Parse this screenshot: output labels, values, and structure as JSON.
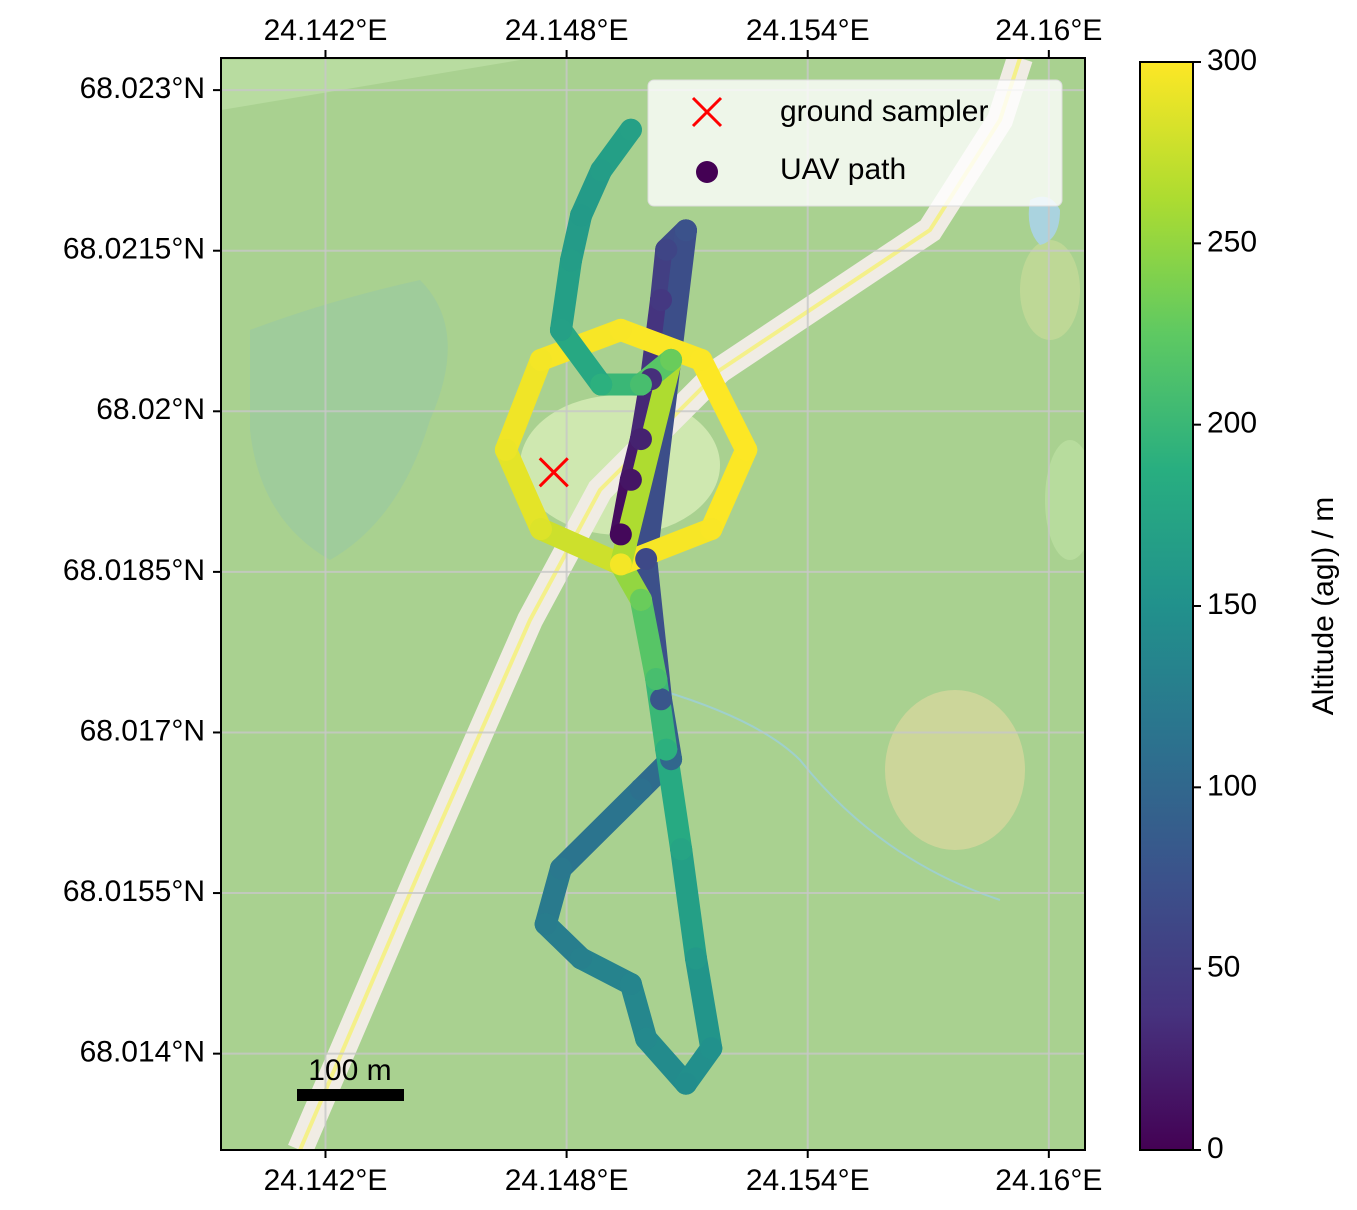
{
  "chart_data": {
    "type": "scatter",
    "xlim": [
      24.1394,
      24.1609
    ],
    "ylim": [
      68.0131,
      68.0233
    ],
    "xticks": [
      {
        "value": 24.142,
        "label": "24.142°E"
      },
      {
        "value": 24.148,
        "label": "24.148°E"
      },
      {
        "value": 24.154,
        "label": "24.154°E"
      },
      {
        "value": 24.16,
        "label": "24.16°E"
      }
    ],
    "yticks": [
      {
        "value": 68.014,
        "label": "68.014°N"
      },
      {
        "value": 68.0155,
        "label": "68.0155°N"
      },
      {
        "value": 68.017,
        "label": "68.017°N"
      },
      {
        "value": 68.0185,
        "label": "68.0185°N"
      },
      {
        "value": 68.02,
        "label": "68.02°N"
      },
      {
        "value": 68.0215,
        "label": "68.0215°N"
      },
      {
        "value": 68.023,
        "label": "68.023°N"
      }
    ],
    "grid": true,
    "legend": "upper right",
    "scale_bar": "100 m",
    "colorbar": {
      "label": "Altitude (agl) / m",
      "clim": [
        0,
        300
      ],
      "ticks": [
        0,
        50,
        100,
        150,
        200,
        250,
        300
      ],
      "colormap": "viridis"
    },
    "series": [
      {
        "name": "ground sampler",
        "color": "#ff0000",
        "marker": "x",
        "x": [
          24.14768
        ],
        "y": [
          68.01943
        ]
      },
      {
        "name": "UAV path",
        "color": "#440154",
        "marker": "o",
        "x": [
          24.14935,
          24.1496,
          24.14985,
          24.1501,
          24.15035,
          24.15048,
          24.15097,
          24.14998,
          24.15035,
          24.1506,
          24.14985,
          24.14786,
          24.14748,
          24.14836,
          24.1496,
          24.14998,
          24.15097,
          24.1516,
          24.15122,
          24.15085,
          24.15048,
          24.15023,
          24.14985,
          24.14935,
          24.14736,
          24.14649,
          24.14736,
          24.14935,
          24.15135,
          24.15247,
          24.1516,
          24.14935,
          24.1506,
          24.14985,
          24.14886,
          24.14786,
          24.14811,
          24.14836,
          24.14886,
          24.1496
        ],
        "y": [
          68.01885,
          68.01936,
          68.01974,
          68.0203,
          68.02104,
          68.02151,
          68.02169,
          68.01862,
          68.01731,
          68.01675,
          68.01647,
          68.01573,
          68.01521,
          68.01489,
          68.01465,
          68.01414,
          68.01372,
          68.01405,
          68.01489,
          68.01591,
          68.01684,
          68.0175,
          68.01824,
          68.01857,
          68.0189,
          68.01964,
          68.02048,
          68.02076,
          68.02048,
          68.01964,
          68.0189,
          68.01857,
          68.02048,
          68.02025,
          68.02025,
          68.02076,
          68.02141,
          68.02183,
          68.02225,
          68.02263
        ],
        "altitude": [
          5,
          15,
          25,
          35,
          45,
          60,
          75,
          65,
          80,
          100,
          110,
          120,
          125,
          130,
          135,
          140,
          145,
          150,
          160,
          175,
          190,
          210,
          230,
          270,
          285,
          292,
          296,
          298,
          299,
          300,
          298,
          296,
          230,
          210,
          190,
          170,
          165,
          162,
          165,
          170
        ]
      }
    ]
  }
}
